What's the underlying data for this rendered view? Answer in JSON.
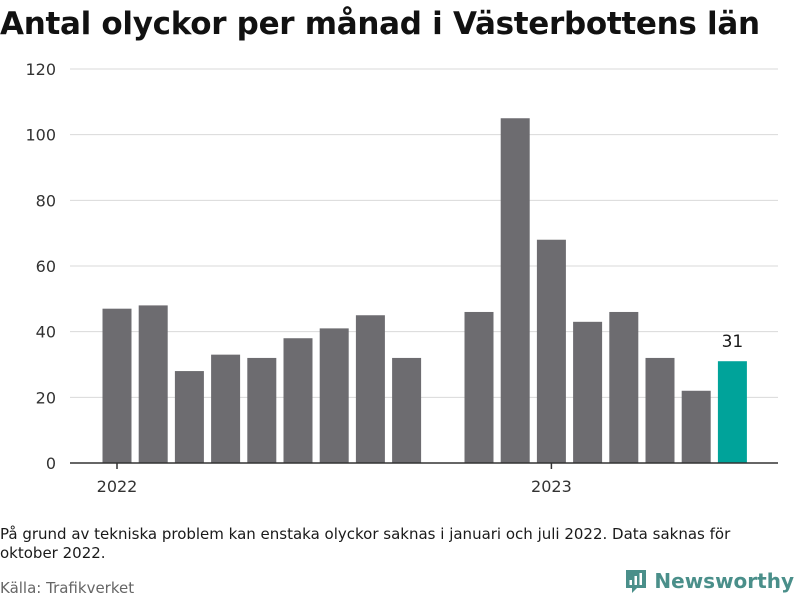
{
  "title": "Antal olyckor per månad i Västerbottens län",
  "note": "På grund av tekniska problem kan enstaka olyckor saknas i januari och juli 2022. Data saknas för oktober 2022.",
  "source": "Källa: Trafikverket",
  "brand": {
    "name": "Newsworthy",
    "icon": "newsworthy-logo-icon",
    "color": "#4a8f8a"
  },
  "colors": {
    "bar": "#6d6c70",
    "highlight": "#00a39a",
    "grid": "#d9d9d9",
    "axis": "#333333"
  },
  "chart_data": {
    "type": "bar",
    "ylim": [
      0,
      120
    ],
    "yticks": [
      0,
      20,
      40,
      60,
      80,
      100,
      120
    ],
    "grid": true,
    "xlabel": "",
    "ylabel": "",
    "x_tick_labels": [
      {
        "label": "2022",
        "month": 0
      },
      {
        "label": "2023",
        "month": 12
      }
    ],
    "months_total": 20,
    "bars": [
      {
        "month": 0,
        "value": 47
      },
      {
        "month": 1,
        "value": 48
      },
      {
        "month": 2,
        "value": 28
      },
      {
        "month": 3,
        "value": 33
      },
      {
        "month": 4,
        "value": 32
      },
      {
        "month": 5,
        "value": 38
      },
      {
        "month": 6,
        "value": 41
      },
      {
        "month": 7,
        "value": 45
      },
      {
        "month": 8,
        "value": 32
      },
      {
        "month": 10,
        "value": 46
      },
      {
        "month": 11,
        "value": 105
      },
      {
        "month": 12,
        "value": 68
      },
      {
        "month": 13,
        "value": 43
      },
      {
        "month": 14,
        "value": 46
      },
      {
        "month": 15,
        "value": 32
      },
      {
        "month": 16,
        "value": 22
      },
      {
        "month": 17,
        "value": 31,
        "highlight": true,
        "label": "31"
      }
    ]
  }
}
